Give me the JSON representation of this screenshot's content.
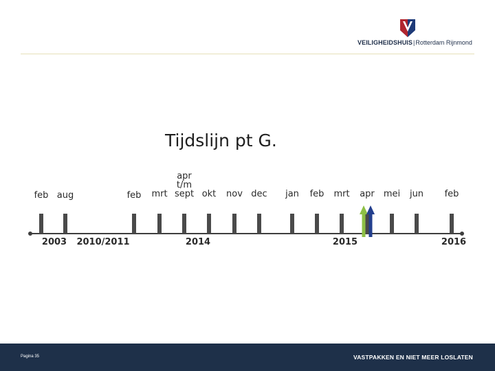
{
  "header": {
    "logo_brand": "VEILIGHEIDSHUIS",
    "logo_separator": "|",
    "logo_region": "Rotterdam Rijnmond",
    "colors": {
      "logo_red": "#b1252e",
      "logo_blue": "#1e3a78",
      "rule": "#e6dfb8"
    }
  },
  "slide": {
    "title": "Tijdslijn pt G."
  },
  "timeline": {
    "months": [
      {
        "label": "feb"
      },
      {
        "label": "aug"
      },
      {
        "label": "feb"
      },
      {
        "label": "mrt"
      },
      {
        "label": "apr t/m sept"
      },
      {
        "label": "okt"
      },
      {
        "label": "nov"
      },
      {
        "label": "dec"
      },
      {
        "label": "jan"
      },
      {
        "label": "feb"
      },
      {
        "label": "mrt"
      },
      {
        "label": "apr"
      },
      {
        "label": "mei"
      },
      {
        "label": "jun"
      },
      {
        "label": "feb"
      }
    ],
    "years": [
      "2003",
      "2010/2011",
      "2014",
      "2015",
      "2016"
    ],
    "arrows": [
      {
        "color": "#8dc045"
      },
      {
        "color": "#233f8e"
      }
    ],
    "colors": {
      "tick": "#4a4a4a",
      "line": "#3e3e3e"
    }
  },
  "footer": {
    "page_label": "Pagina 35",
    "slogan": "VASTPAKKEN EN NIET MEER LOSLATEN",
    "background": "#1e3049"
  }
}
